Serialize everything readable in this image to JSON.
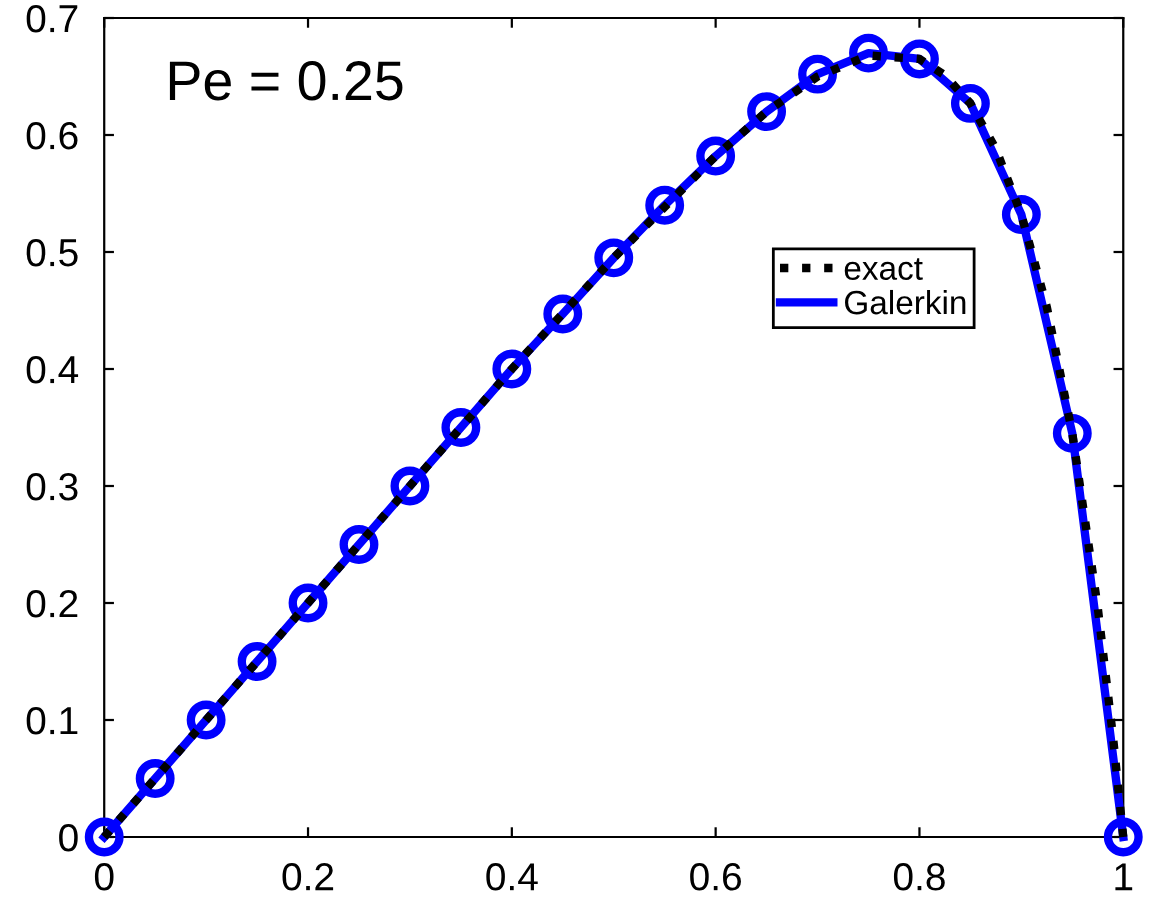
{
  "chart_data": {
    "type": "line",
    "annotations": [
      "Pe = 0.25"
    ],
    "xlim": [
      0,
      1
    ],
    "ylim": [
      0,
      0.7
    ],
    "xticks": [
      0,
      0.2,
      0.4,
      0.6,
      0.8,
      1
    ],
    "yticks": [
      0,
      0.1,
      0.2,
      0.3,
      0.4,
      0.5,
      0.6,
      0.7
    ],
    "grid": false,
    "legend": "right",
    "series": [
      {
        "name": "exact",
        "color": "#000000",
        "line_style": "dotted",
        "marker": "none",
        "x": [
          0,
          0.1,
          0.2,
          0.3,
          0.4,
          0.5,
          0.6,
          0.65,
          0.7,
          0.75,
          0.8,
          0.825,
          0.85,
          0.875,
          0.9,
          0.925,
          0.95,
          0.975,
          0.99,
          1
        ],
        "values": [
          0,
          0.1,
          0.2,
          0.3,
          0.4,
          0.495,
          0.582,
          0.62,
          0.65,
          0.668,
          0.665,
          0.651,
          0.627,
          0.588,
          0.532,
          0.453,
          0.345,
          0.196,
          0.085,
          0
        ]
      },
      {
        "name": "Galerkin",
        "color": "#0000ff",
        "line_style": "solid",
        "marker": "circle",
        "x": [
          0,
          0.05,
          0.1,
          0.15,
          0.2,
          0.25,
          0.3,
          0.35,
          0.4,
          0.45,
          0.5,
          0.55,
          0.6,
          0.65,
          0.7,
          0.75,
          0.8,
          0.85,
          0.9,
          0.95,
          1
        ],
        "values": [
          0,
          0.05,
          0.1,
          0.15,
          0.2,
          0.25,
          0.3,
          0.35,
          0.4,
          0.447,
          0.495,
          0.54,
          0.582,
          0.62,
          0.652,
          0.67,
          0.665,
          0.627,
          0.532,
          0.345,
          0
        ]
      }
    ]
  }
}
